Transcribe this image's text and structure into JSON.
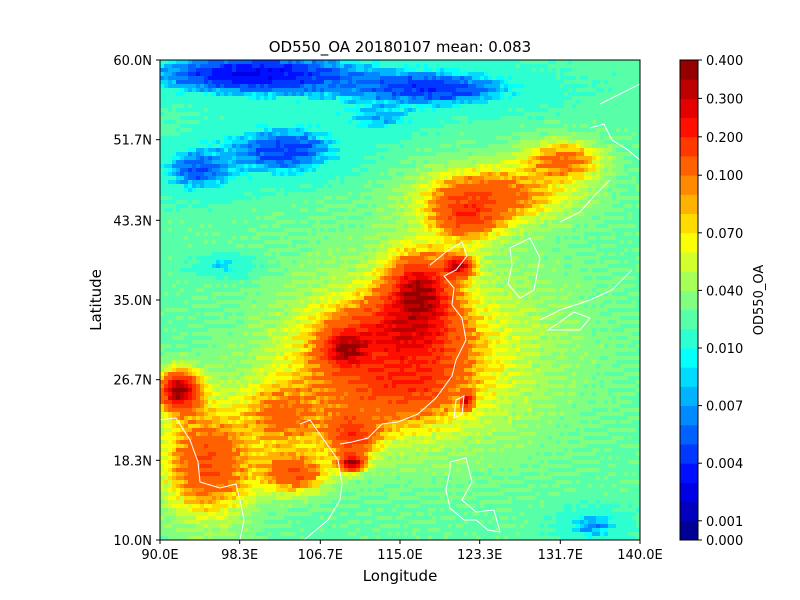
{
  "chart_data": {
    "type": "heatmap",
    "title": "OD550_OA 20180107 mean: 0.083",
    "xlabel": "Longitude",
    "ylabel": "Latitude",
    "xlim": [
      90.0,
      140.0
    ],
    "ylim": [
      10.0,
      60.0
    ],
    "xticks": [
      {
        "value": 90.0,
        "label": "90.0E"
      },
      {
        "value": 98.3,
        "label": "98.3E"
      },
      {
        "value": 106.7,
        "label": "106.7E"
      },
      {
        "value": 115.0,
        "label": "115.0E"
      },
      {
        "value": 123.3,
        "label": "123.3E"
      },
      {
        "value": 131.7,
        "label": "131.7E"
      },
      {
        "value": 140.0,
        "label": "140.0E"
      }
    ],
    "yticks": [
      {
        "value": 10.0,
        "label": "10.0N"
      },
      {
        "value": 18.3,
        "label": "18.3N"
      },
      {
        "value": 26.7,
        "label": "26.7N"
      },
      {
        "value": 35.0,
        "label": "35.0N"
      },
      {
        "value": 43.3,
        "label": "43.3N"
      },
      {
        "value": 51.7,
        "label": "51.7N"
      },
      {
        "value": 60.0,
        "label": "60.0N"
      }
    ],
    "colorbar": {
      "label": "OD550_OA",
      "colormap": "jet",
      "levels": [
        0.0,
        0.001,
        0.002,
        0.003,
        0.004,
        0.005,
        0.006,
        0.007,
        0.008,
        0.009,
        0.01,
        0.02,
        0.03,
        0.04,
        0.05,
        0.06,
        0.07,
        0.08,
        0.09,
        0.1,
        0.15,
        0.2,
        0.25,
        0.3,
        0.35,
        0.4
      ],
      "ticks": [
        {
          "value": 0.0,
          "label": "0.000"
        },
        {
          "value": 0.001,
          "label": "0.001"
        },
        {
          "value": 0.004,
          "label": "0.004"
        },
        {
          "value": 0.007,
          "label": "0.007"
        },
        {
          "value": 0.01,
          "label": "0.010"
        },
        {
          "value": 0.04,
          "label": "0.040"
        },
        {
          "value": 0.07,
          "label": "0.070"
        },
        {
          "value": 0.1,
          "label": "0.100"
        },
        {
          "value": 0.2,
          "label": "0.200"
        },
        {
          "value": 0.3,
          "label": "0.300"
        },
        {
          "value": 0.4,
          "label": "0.400"
        }
      ]
    },
    "background_value": 0.025,
    "regions": [
      {
        "lon": 100.0,
        "lat": 58.5,
        "value": 0.003,
        "rx": 14,
        "ry": 2.8
      },
      {
        "lon": 118.0,
        "lat": 57.0,
        "value": 0.004,
        "rx": 12,
        "ry": 2.5
      },
      {
        "lon": 103.0,
        "lat": 50.5,
        "value": 0.004,
        "rx": 8,
        "ry": 3.5
      },
      {
        "lon": 94.0,
        "lat": 48.5,
        "value": 0.005,
        "rx": 5,
        "ry": 3.0
      },
      {
        "lon": 113.0,
        "lat": 54.0,
        "value": 0.007,
        "rx": 5,
        "ry": 2.0
      },
      {
        "lon": 97.0,
        "lat": 38.5,
        "value": 0.006,
        "rx": 3.5,
        "ry": 1.4
      },
      {
        "lon": 135.0,
        "lat": 11.5,
        "value": 0.006,
        "rx": 4,
        "ry": 2.0
      },
      {
        "lon": 118.0,
        "lat": 30.0,
        "value": 0.06,
        "rx": 19,
        "ry": 14
      },
      {
        "lon": 125.0,
        "lat": 46.0,
        "value": 0.12,
        "rx": 9,
        "ry": 3.5
      },
      {
        "lon": 132.0,
        "lat": 49.5,
        "value": 0.12,
        "rx": 5,
        "ry": 2.5
      },
      {
        "lon": 122.0,
        "lat": 44.0,
        "value": 0.2,
        "rx": 4,
        "ry": 3.0
      },
      {
        "lon": 113.0,
        "lat": 28.0,
        "value": 0.15,
        "rx": 10,
        "ry": 7
      },
      {
        "lon": 95.0,
        "lat": 18.0,
        "value": 0.15,
        "rx": 6,
        "ry": 7
      },
      {
        "lon": 103.0,
        "lat": 23.0,
        "value": 0.12,
        "rx": 5,
        "ry": 4
      },
      {
        "lon": 104.0,
        "lat": 17.0,
        "value": 0.15,
        "rx": 4,
        "ry": 2.5
      },
      {
        "lon": 110.0,
        "lat": 21.0,
        "value": 0.2,
        "rx": 3,
        "ry": 2.5
      },
      {
        "lon": 116.0,
        "lat": 27.0,
        "value": 0.2,
        "rx": 5,
        "ry": 3.5
      },
      {
        "lon": 115.0,
        "lat": 31.5,
        "value": 0.25,
        "rx": 6,
        "ry": 3.5
      },
      {
        "lon": 92.0,
        "lat": 25.5,
        "value": 0.4,
        "rx": 2.5,
        "ry": 2.5
      },
      {
        "lon": 117.0,
        "lat": 35.5,
        "value": 0.4,
        "rx": 3.8,
        "ry": 4.5
      },
      {
        "lon": 109.5,
        "lat": 30.0,
        "value": 0.4,
        "rx": 2.4,
        "ry": 2.0
      },
      {
        "lon": 121.0,
        "lat": 38.5,
        "value": 0.35,
        "rx": 1.8,
        "ry": 1.3
      },
      {
        "lon": 110.0,
        "lat": 18.0,
        "value": 0.4,
        "rx": 1.5,
        "ry": 1.0
      },
      {
        "lon": 122.0,
        "lat": 24.5,
        "value": 0.3,
        "rx": 0.7,
        "ry": 1.0
      }
    ]
  }
}
